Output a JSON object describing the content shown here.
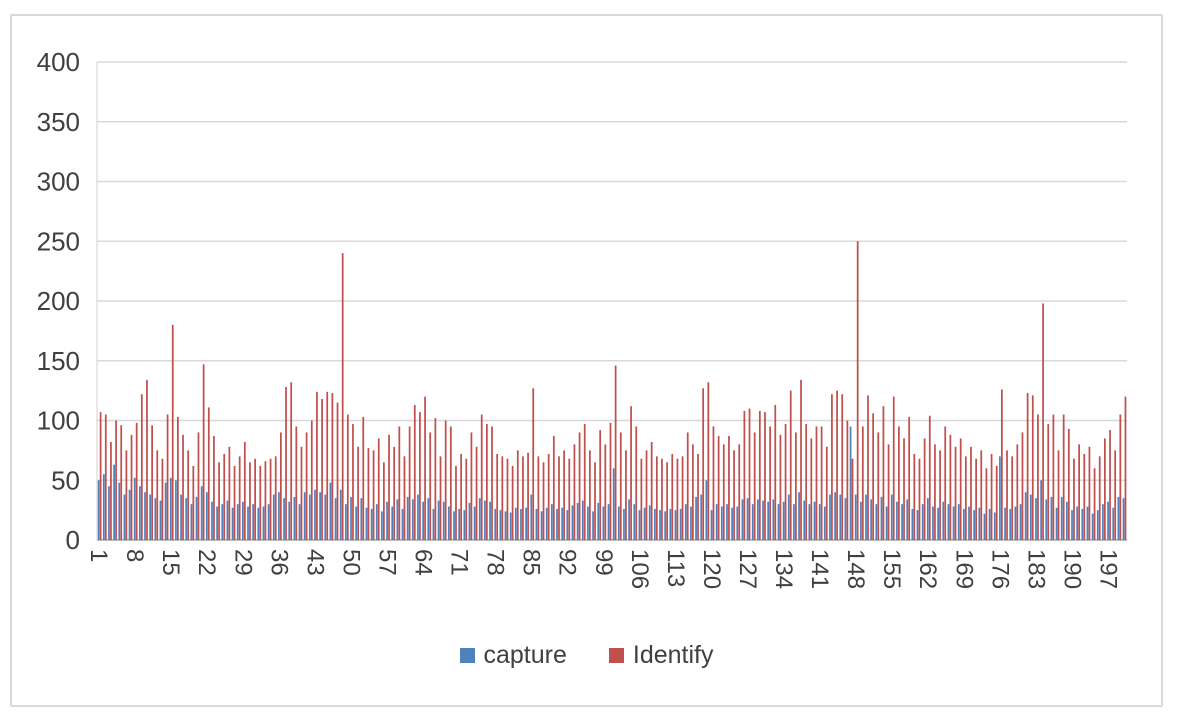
{
  "chart": {
    "background_color": "#ffffff",
    "frame_border_color": "#d9d9d9",
    "gridline_color": "#d9d9d9",
    "axis_line_color": "#a6a6a6",
    "label_text_color": "#404040",
    "title": ""
  },
  "legend": {
    "position": "bottom",
    "items": [
      {
        "label": "capture",
        "color": "#4F81BD"
      },
      {
        "label": "Identify",
        "color": "#C0504D"
      }
    ]
  },
  "chart_data": {
    "type": "bar",
    "title": "",
    "xlabel": "",
    "ylabel": "",
    "ylim": [
      0,
      400
    ],
    "y_ticks": [
      0,
      50,
      100,
      150,
      200,
      250,
      300,
      350,
      400
    ],
    "x_tick_labels": [
      1,
      8,
      15,
      22,
      29,
      36,
      43,
      50,
      57,
      64,
      71,
      78,
      85,
      92,
      99,
      106,
      113,
      120,
      127,
      134,
      141,
      148,
      155,
      162,
      169,
      176,
      183,
      190,
      197
    ],
    "n_categories": 200,
    "grid": true,
    "legend_position": "bottom",
    "series": [
      {
        "name": "capture",
        "color": "#4F81BD",
        "values": [
          50,
          55,
          45,
          63,
          48,
          38,
          42,
          52,
          45,
          40,
          38,
          35,
          33,
          48,
          52,
          50,
          38,
          35,
          30,
          36,
          45,
          40,
          32,
          28,
          30,
          33,
          27,
          30,
          32,
          28,
          30,
          27,
          28,
          30,
          38,
          40,
          35,
          32,
          36,
          30,
          40,
          38,
          42,
          40,
          38,
          48,
          35,
          42,
          30,
          36,
          28,
          35,
          27,
          26,
          30,
          24,
          32,
          28,
          34,
          26,
          36,
          34,
          38,
          32,
          35,
          26,
          33,
          32,
          28,
          24,
          26,
          25,
          31,
          28,
          35,
          33,
          32,
          26,
          25,
          24,
          23,
          27,
          26,
          27,
          38,
          26,
          24,
          27,
          30,
          26,
          27,
          25,
          29,
          31,
          33,
          28,
          24,
          31,
          28,
          30,
          60,
          28,
          26,
          34,
          30,
          25,
          27,
          29,
          26,
          25,
          24,
          26,
          25,
          26,
          30,
          28,
          36,
          38,
          50,
          25,
          30,
          28,
          30,
          27,
          28,
          34,
          35,
          30,
          34,
          33,
          32,
          34,
          30,
          32,
          38,
          30,
          40,
          33,
          30,
          32,
          30,
          28,
          38,
          40,
          38,
          35,
          95,
          38,
          32,
          38,
          34,
          30,
          36,
          28,
          38,
          32,
          30,
          34,
          26,
          25,
          30,
          35,
          28,
          27,
          32,
          30,
          28,
          30,
          26,
          28,
          25,
          27,
          22,
          26,
          23,
          70,
          27,
          26,
          28,
          30,
          40,
          38,
          35,
          50,
          34,
          36,
          27,
          36,
          32,
          25,
          28,
          26,
          28,
          22,
          25,
          30,
          32,
          27,
          36,
          35
        ]
      },
      {
        "name": "Identify",
        "color": "#C0504D",
        "values": [
          107,
          105,
          82,
          100,
          96,
          75,
          88,
          98,
          122,
          134,
          96,
          75,
          68,
          105,
          180,
          103,
          88,
          75,
          62,
          90,
          147,
          111,
          87,
          65,
          72,
          78,
          62,
          70,
          82,
          65,
          68,
          62,
          66,
          68,
          70,
          90,
          128,
          132,
          95,
          78,
          90,
          100,
          124,
          118,
          124,
          123,
          115,
          240,
          105,
          97,
          78,
          103,
          77,
          75,
          85,
          65,
          88,
          78,
          95,
          70,
          95,
          113,
          107,
          120,
          90,
          102,
          70,
          100,
          95,
          62,
          72,
          68,
          90,
          78,
          105,
          97,
          95,
          72,
          70,
          68,
          62,
          75,
          70,
          73,
          127,
          70,
          65,
          72,
          87,
          70,
          75,
          68,
          80,
          90,
          97,
          75,
          65,
          92,
          80,
          98,
          146,
          90,
          75,
          112,
          95,
          68,
          75,
          82,
          70,
          68,
          65,
          72,
          68,
          70,
          90,
          80,
          72,
          127,
          132,
          95,
          87,
          80,
          87,
          75,
          80,
          108,
          110,
          90,
          108,
          107,
          95,
          113,
          88,
          97,
          125,
          90,
          134,
          97,
          85,
          95,
          95,
          78,
          122,
          125,
          122,
          100,
          68,
          250,
          95,
          121,
          106,
          90,
          112,
          80,
          120,
          95,
          85,
          103,
          72,
          68,
          85,
          104,
          80,
          75,
          95,
          88,
          78,
          85,
          70,
          78,
          68,
          75,
          60,
          72,
          62,
          126,
          75,
          70,
          80,
          90,
          123,
          121,
          105,
          198,
          97,
          105,
          75,
          105,
          93,
          68,
          80,
          72,
          78,
          60,
          70,
          85,
          92,
          75,
          105,
          120
        ]
      }
    ]
  }
}
